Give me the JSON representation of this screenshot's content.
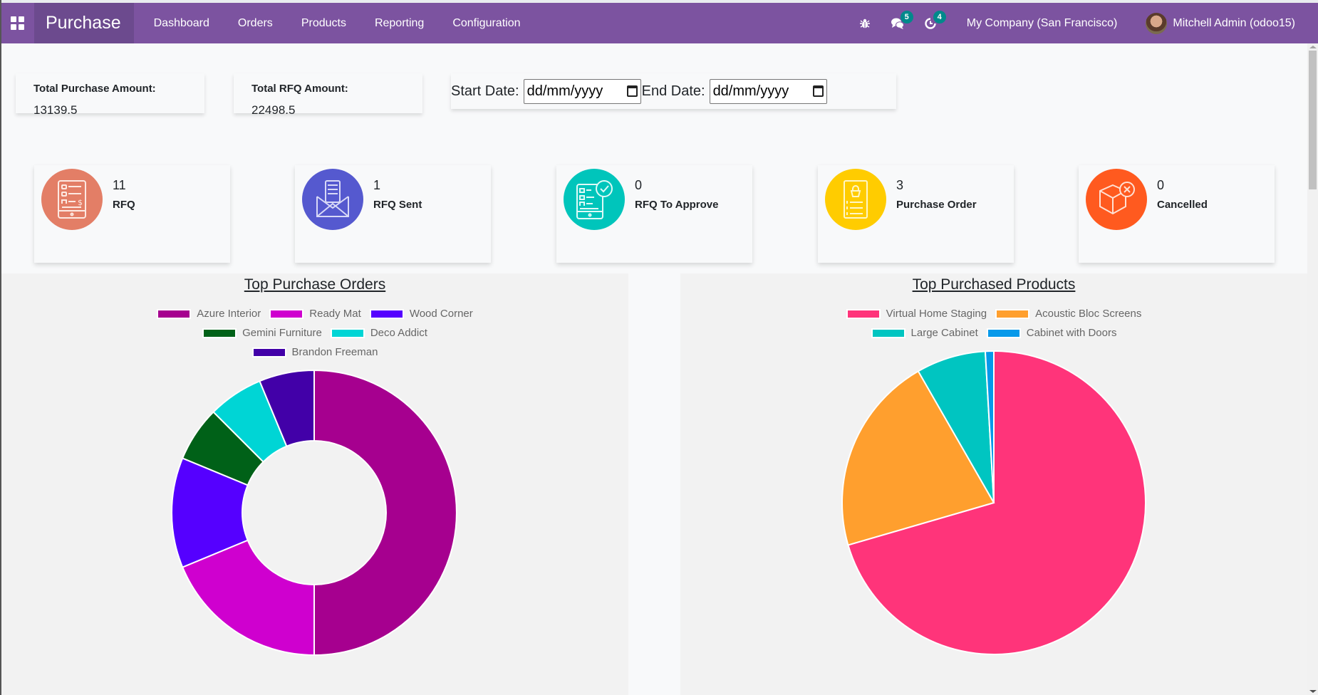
{
  "navbar": {
    "app_name": "Purchase",
    "menu": [
      "Dashboard",
      "Orders",
      "Products",
      "Reporting",
      "Configuration"
    ],
    "messages_count": "5",
    "activities_count": "4",
    "company": "My Company (San Francisco)",
    "user": "Mitchell Admin (odoo15)",
    "icons": {
      "apps": "apps-grid-icon",
      "debug": "bug-icon",
      "messages": "chat-icon",
      "activities": "clock-icon"
    }
  },
  "totals": {
    "purchase_label": "Total Purchase Amount:",
    "purchase_value": "13139.5",
    "rfq_label": "Total RFQ Amount:",
    "rfq_value": "22498.5"
  },
  "date_filter": {
    "start_label": "Start Date:",
    "start_placeholder": "dd/mm/yyyy",
    "end_label": "End Date:",
    "end_placeholder": "dd/mm/yyyy"
  },
  "stats": [
    {
      "count": "11",
      "label": "RFQ",
      "color": "#e37e66",
      "icon": "rfq-document-icon"
    },
    {
      "count": "1",
      "label": "RFQ Sent",
      "color": "#5559cf",
      "icon": "envelope-document-icon"
    },
    {
      "count": "0",
      "label": "RFQ To Approve",
      "color": "#00c5bb",
      "icon": "approve-document-icon"
    },
    {
      "count": "3",
      "label": "Purchase Order",
      "color": "#ffcc00",
      "icon": "order-list-icon"
    },
    {
      "count": "0",
      "label": "Cancelled",
      "color": "#ff5a1f",
      "icon": "cancelled-box-icon"
    }
  ],
  "chart_data": [
    {
      "type": "pie",
      "variant": "doughnut",
      "title": "Top Purchase Orders",
      "legend_position": "top",
      "categories": [
        "Azure Interior",
        "Ready Mat",
        "Wood Corner",
        "Gemini Furniture",
        "Deco Addict",
        "Brandon Freeman"
      ],
      "values": [
        8,
        3,
        2,
        1,
        1,
        1
      ],
      "colors": [
        "#a6008f",
        "#cf00cf",
        "#5500ff",
        "#006118",
        "#00d5d5",
        "#4200a8"
      ]
    },
    {
      "type": "pie",
      "title": "Top Purchased Products",
      "legend_position": "top",
      "categories": [
        "Virtual Home Staging",
        "Acoustic Bloc Screens",
        "Large Cabinet",
        "Cabinet with Doors"
      ],
      "values": [
        70.5,
        21.2,
        7.4,
        0.9
      ],
      "colors": [
        "#ff347a",
        "#ff9f2e",
        "#00c5c1",
        "#0699ea"
      ]
    }
  ]
}
